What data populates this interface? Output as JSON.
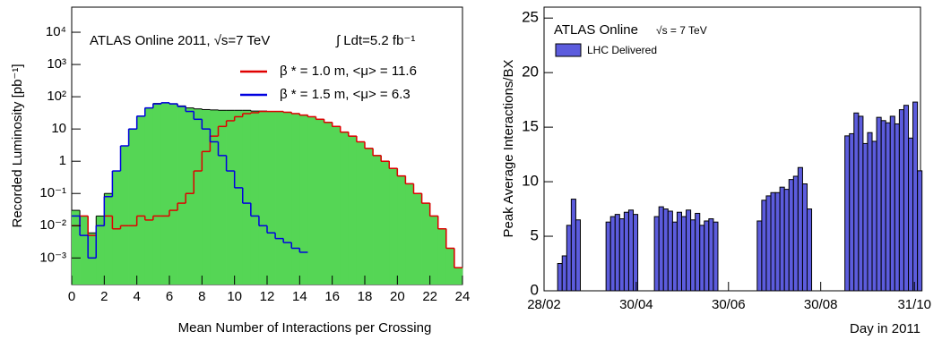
{
  "chart_data": [
    {
      "type": "histogram",
      "title": "ATLAS Online 2011, √s=7 TeV",
      "annotation": "∫ Ldt=5.2 fb⁻¹",
      "x_label": "Mean Number of Interactions per Crossing",
      "y_label": "Recorded Luminosity [pb⁻¹]",
      "log_y": true,
      "bins": [
        0,
        0.5,
        1,
        1.5,
        2,
        2.5,
        3,
        3.5,
        4,
        4.5,
        5,
        5.5,
        6,
        6.5,
        7,
        7.5,
        8,
        8.5,
        9,
        9.5,
        10,
        10.5,
        11,
        11.5,
        12,
        12.5,
        13,
        13.5,
        14,
        14.5,
        15,
        15.5,
        16,
        16.5,
        17,
        17.5,
        18,
        18.5,
        19,
        19.5,
        20,
        20.5,
        21,
        21.5,
        22,
        22.5,
        23,
        23.5,
        24
      ],
      "series": [
        {
          "color": "#55d655",
          "filled": true,
          "values": [
            0.03,
            0.02,
            0.006,
            0.02,
            0.1,
            0.5,
            3,
            10,
            25,
            45,
            62,
            65,
            61,
            52,
            45,
            42,
            40,
            39,
            38,
            38,
            38,
            38,
            36,
            36,
            35,
            35,
            33,
            30,
            27,
            24,
            20,
            16,
            12,
            8,
            6,
            4,
            2.5,
            1.5,
            1,
            0.6,
            0.35,
            0.2,
            0.1,
            0.05,
            0.02,
            0.008,
            0.002,
            0.0005
          ]
        },
        {
          "name": "β * = 1.0 m, <μ> = 11.6",
          "color": "#e00000",
          "values": [
            0.01,
            0.02,
            0.005,
            0.01,
            0.02,
            0.008,
            0.01,
            0.01,
            0.02,
            0.015,
            0.02,
            0.02,
            0.03,
            0.05,
            0.1,
            0.5,
            2,
            6,
            12,
            18,
            24,
            30,
            32,
            35,
            35,
            35,
            33,
            30,
            27,
            24,
            20,
            16,
            12,
            8,
            6,
            4,
            2.5,
            1.5,
            1,
            0.6,
            0.35,
            0.2,
            0.1,
            0.05,
            0.02,
            0.008,
            0.002,
            0.0005
          ]
        },
        {
          "name": "β * = 1.5 m, <μ> =  6.3",
          "color": "#0000e0",
          "values": [
            0.02,
            0.005,
            0.001,
            0.01,
            0.08,
            0.5,
            3,
            10,
            25,
            45,
            60,
            65,
            60,
            50,
            35,
            20,
            10,
            4,
            1.5,
            0.5,
            0.15,
            0.05,
            0.02,
            0.01,
            0.006,
            0.004,
            0.003,
            0.002,
            0.0015,
            null,
            null,
            null,
            null,
            null,
            null,
            null,
            null,
            null,
            null,
            null,
            null,
            null,
            null,
            null,
            null,
            null,
            null,
            null
          ]
        }
      ],
      "xlim": [
        0,
        24
      ],
      "xticks": [
        0,
        2,
        4,
        6,
        8,
        10,
        12,
        14,
        16,
        18,
        20,
        22,
        24
      ],
      "ylim": [
        0.00015,
        60000
      ],
      "yticks": [
        {
          "value": 0.001,
          "label": "10⁻³"
        },
        {
          "value": 0.01,
          "label": "10⁻²"
        },
        {
          "value": 0.1,
          "label": "10⁻¹"
        },
        1,
        10,
        {
          "value": 100,
          "label": "10²"
        },
        {
          "value": 1000,
          "label": "10³"
        },
        {
          "value": 10000,
          "label": "10⁴"
        }
      ]
    },
    {
      "type": "bar",
      "title": "ATLAS Online",
      "subtitle": "√s = 7 TeV",
      "x_label": "Day in 2011",
      "y_label": "Peak Average Interactions/BX",
      "x": [
        "09/03",
        "12/03",
        "15/03",
        "18/03",
        "21/03",
        "10/04",
        "13/04",
        "16/04",
        "19/04",
        "22/04",
        "25/04",
        "28/04",
        "12/05",
        "15/05",
        "18/05",
        "21/05",
        "24/05",
        "27/05",
        "30/05",
        "02/06",
        "05/06",
        "08/06",
        "11/06",
        "14/06",
        "17/06",
        "20/06",
        "19/07",
        "22/07",
        "25/07",
        "28/07",
        "31/07",
        "03/08",
        "06/08",
        "09/08",
        "12/08",
        "15/08",
        "18/08",
        "21/08",
        "15/09",
        "18/09",
        "21/09",
        "24/09",
        "27/09",
        "30/09",
        "03/10",
        "06/10",
        "09/10",
        "12/10",
        "15/10",
        "18/10",
        "21/10",
        "24/10",
        "27/10",
        "30/10",
        "02/11"
      ],
      "series": [
        {
          "name": "LHC Delivered",
          "color": "#5c5cdd",
          "values": [
            2.5,
            3.2,
            6,
            8.4,
            6.5,
            6.3,
            6.8,
            7,
            6.6,
            7.2,
            7.4,
            7,
            6.8,
            7.7,
            7.5,
            7.3,
            6.3,
            7.2,
            6.8,
            7.4,
            6.5,
            7.1,
            6,
            6.4,
            6.6,
            6.3,
            6.4,
            8.3,
            8.7,
            9,
            9,
            9.5,
            9.3,
            10.2,
            10.5,
            11.3,
            9.8,
            7.5,
            14.2,
            14.4,
            16.3,
            16,
            13.5,
            14.5,
            13.7,
            15.9,
            15.6,
            15.4,
            16,
            15.3,
            16.6,
            17,
            14,
            17.3,
            11
          ]
        }
      ],
      "xlim": [
        "28/02",
        "04/11"
      ],
      "xticks": [
        "28/02",
        "30/04",
        "30/06",
        "30/08",
        "31/10"
      ],
      "ylim": [
        0,
        26
      ],
      "yticks": [
        0,
        5,
        10,
        15,
        20,
        25
      ]
    }
  ]
}
